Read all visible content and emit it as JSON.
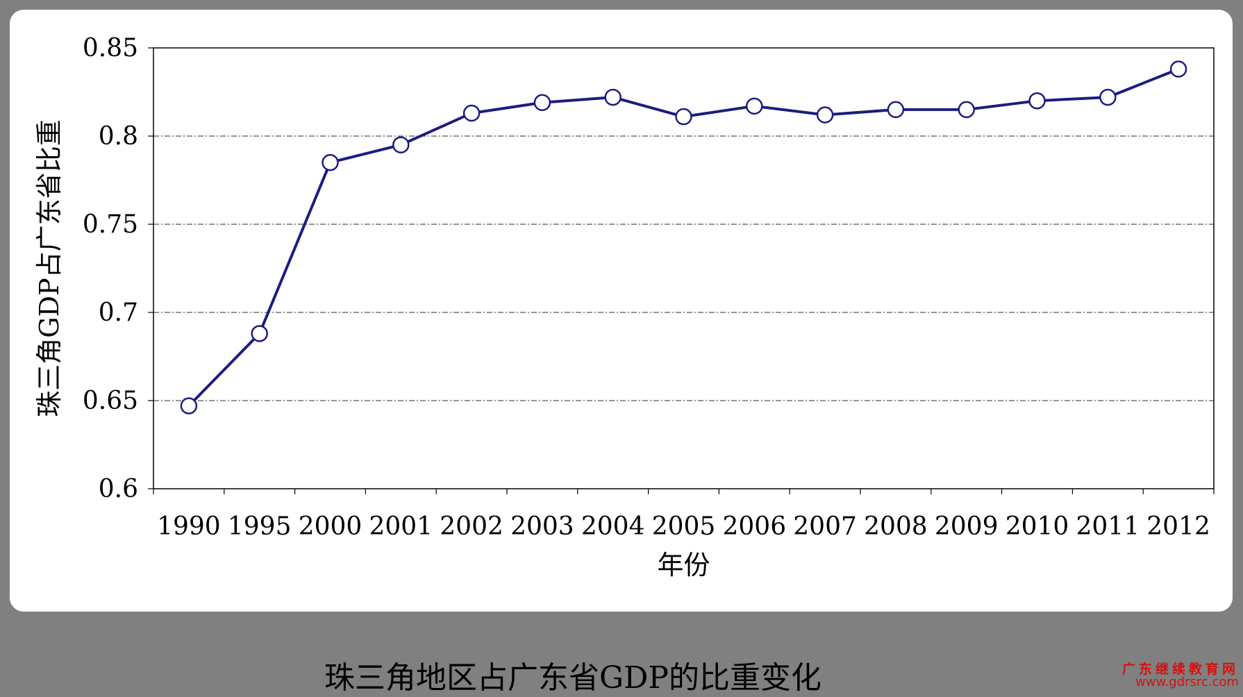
{
  "caption": "珠三角地区占广东省GDP的比重变化",
  "watermark": {
    "name": "广东继续教育网",
    "url": "www.gdrsrc.com"
  },
  "colors": {
    "line": "#1c1c80",
    "marker_fill": "#ffffff",
    "grid": "#555555",
    "background": "#808080",
    "watermark": "#d81010"
  },
  "chart_data": {
    "type": "line",
    "title": "",
    "xlabel": "年份",
    "ylabel": "珠三角GDP占广东省比重",
    "categories": [
      "1990",
      "1995",
      "2000",
      "2001",
      "2002",
      "2003",
      "2004",
      "2005",
      "2006",
      "2007",
      "2008",
      "2009",
      "2010",
      "2011",
      "2012"
    ],
    "series": [
      {
        "values": [
          0.647,
          0.688,
          0.785,
          0.795,
          0.813,
          0.819,
          0.822,
          0.811,
          0.817,
          0.812,
          0.815,
          0.815,
          0.82,
          0.822,
          0.838
        ]
      }
    ],
    "ylim": [
      0.6,
      0.85
    ],
    "yticks": [
      0.6,
      0.65,
      0.7,
      0.75,
      0.8,
      0.85
    ],
    "ytick_labels": [
      "0.6",
      "0.65",
      "0.7",
      "0.75",
      "0.8",
      "0.85"
    ],
    "grid": "horizontal dashed",
    "legend": "none",
    "marker": "open circle"
  }
}
